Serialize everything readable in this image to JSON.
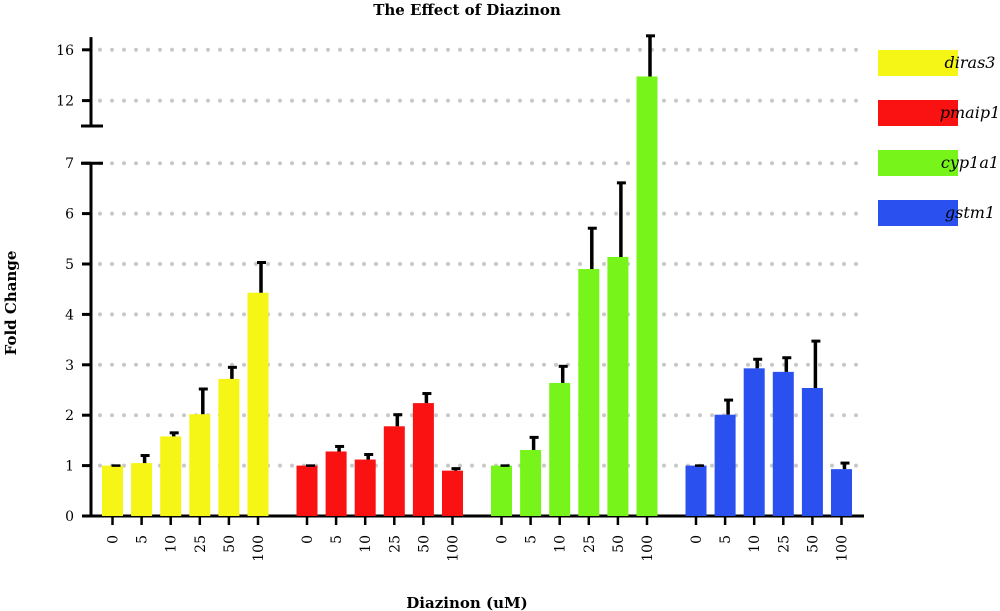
{
  "chart_data": {
    "type": "bar",
    "title": "The Effect of Diazinon",
    "xlabel": "Diazinon (uM)",
    "ylabel": "Fold Change",
    "categories": [
      "0",
      "5",
      "10",
      "25",
      "50",
      "100"
    ],
    "y_axis_break": {
      "lower_range": [
        0,
        7
      ],
      "upper_range": [
        10,
        17
      ]
    },
    "yticks_lower": [
      "0",
      "1",
      "2",
      "3",
      "4",
      "5",
      "6",
      "7"
    ],
    "yticks_upper": [
      "12",
      "16"
    ],
    "grid": "dotted horizontal",
    "legend_position": "right",
    "series": [
      {
        "name": "diras3",
        "color": "#f5f516",
        "values": [
          1.0,
          1.05,
          1.58,
          2.02,
          2.72,
          4.43
        ],
        "errors": [
          0.0,
          0.15,
          0.07,
          0.5,
          0.23,
          0.6
        ]
      },
      {
        "name": "pmaip1",
        "color": "#fa1212",
        "values": [
          1.0,
          1.28,
          1.12,
          1.78,
          2.24,
          0.9
        ],
        "errors": [
          0.0,
          0.1,
          0.1,
          0.23,
          0.19,
          0.04
        ]
      },
      {
        "name": "cyp1a1",
        "color": "#77f51a",
        "values": [
          1.0,
          1.31,
          2.64,
          4.9,
          5.14,
          13.9
        ],
        "errors": [
          0.0,
          0.25,
          0.33,
          0.81,
          1.47,
          3.2
        ]
      },
      {
        "name": "gstm1",
        "color": "#2a51ef",
        "values": [
          1.0,
          2.01,
          2.93,
          2.86,
          2.54,
          0.93
        ],
        "errors": [
          0.0,
          0.29,
          0.18,
          0.28,
          0.93,
          0.12
        ]
      }
    ]
  }
}
